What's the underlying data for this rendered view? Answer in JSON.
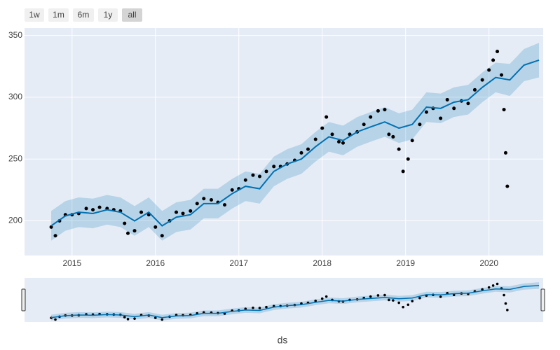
{
  "chart_data": {
    "type": "line",
    "range_buttons": [
      "1w",
      "1m",
      "6m",
      "1y",
      "all"
    ],
    "active_button": 4,
    "x_label": "ds",
    "xlim": [
      2014.43,
      2020.65
    ],
    "xticks": [
      2015,
      2016,
      2017,
      2018,
      2019,
      2020
    ],
    "ylim": [
      172,
      356
    ],
    "yticks": [
      200,
      250,
      300,
      350
    ],
    "grid": true,
    "range_slider": true,
    "series": [
      {
        "mode": "markers",
        "color": "#000000",
        "x": [
          2014.75,
          2014.8,
          2014.85,
          2014.92,
          2015.0,
          2015.08,
          2015.17,
          2015.25,
          2015.33,
          2015.42,
          2015.5,
          2015.58,
          2015.63,
          2015.67,
          2015.75,
          2015.83,
          2015.92,
          2016.0,
          2016.08,
          2016.17,
          2016.25,
          2016.33,
          2016.42,
          2016.5,
          2016.58,
          2016.67,
          2016.75,
          2016.83,
          2016.92,
          2017.0,
          2017.08,
          2017.17,
          2017.25,
          2017.33,
          2017.42,
          2017.5,
          2017.58,
          2017.67,
          2017.75,
          2017.83,
          2017.92,
          2018.0,
          2018.05,
          2018.12,
          2018.2,
          2018.25,
          2018.33,
          2018.42,
          2018.5,
          2018.58,
          2018.67,
          2018.75,
          2018.8,
          2018.85,
          2018.92,
          2018.97,
          2019.03,
          2019.08,
          2019.17,
          2019.25,
          2019.33,
          2019.42,
          2019.5,
          2019.58,
          2019.67,
          2019.75,
          2019.83,
          2019.92,
          2020.0,
          2020.05,
          2020.1,
          2020.15,
          2020.18,
          2020.2,
          2020.22
        ],
        "values": [
          195,
          188,
          200,
          205,
          205,
          206,
          210,
          209,
          211,
          210,
          209,
          208,
          198,
          190,
          192,
          207,
          205,
          195,
          188,
          200,
          207,
          206,
          208,
          214,
          218,
          217,
          215,
          213,
          225,
          226,
          233,
          237,
          236,
          240,
          244,
          244,
          246,
          249,
          255,
          258,
          266,
          275,
          284,
          270,
          264,
          263,
          270,
          272,
          278,
          284,
          289,
          290,
          270,
          268,
          258,
          240,
          250,
          265,
          278,
          288,
          291,
          283,
          298,
          291,
          297,
          295,
          306,
          314,
          322,
          330,
          337,
          318,
          290,
          255,
          228
        ]
      },
      {
        "mode": "line",
        "color": "#0072b2",
        "x": [
          2014.75,
          2014.92,
          2015.08,
          2015.25,
          2015.42,
          2015.58,
          2015.75,
          2015.92,
          2016.08,
          2016.25,
          2016.42,
          2016.58,
          2016.75,
          2016.92,
          2017.08,
          2017.25,
          2017.42,
          2017.58,
          2017.75,
          2017.92,
          2018.08,
          2018.25,
          2018.42,
          2018.58,
          2018.75,
          2018.92,
          2019.08,
          2019.25,
          2019.42,
          2019.58,
          2019.75,
          2019.92,
          2020.08,
          2020.25,
          2020.42,
          2020.6
        ],
        "values": [
          196,
          204,
          207,
          206,
          209,
          207,
          200,
          207,
          196,
          203,
          205,
          214,
          214,
          222,
          228,
          226,
          240,
          246,
          250,
          260,
          268,
          265,
          272,
          276,
          280,
          275,
          278,
          292,
          291,
          296,
          298,
          308,
          316,
          314,
          326,
          330
        ]
      }
    ],
    "band": {
      "color": "#0072b2",
      "x": [
        2014.75,
        2014.92,
        2015.08,
        2015.25,
        2015.42,
        2015.58,
        2015.75,
        2015.92,
        2016.08,
        2016.25,
        2016.42,
        2016.58,
        2016.75,
        2016.92,
        2017.08,
        2017.25,
        2017.42,
        2017.58,
        2017.75,
        2017.92,
        2018.08,
        2018.25,
        2018.42,
        2018.58,
        2018.75,
        2018.92,
        2019.08,
        2019.25,
        2019.42,
        2019.58,
        2019.75,
        2019.92,
        2020.08,
        2020.25,
        2020.42,
        2020.6
      ],
      "upper": [
        208,
        216,
        219,
        218,
        221,
        219,
        212,
        219,
        208,
        215,
        217,
        226,
        226,
        234,
        240,
        238,
        252,
        258,
        262,
        272,
        280,
        277,
        284,
        288,
        292,
        287,
        290,
        304,
        303,
        308,
        310,
        320,
        328,
        327,
        339,
        344
      ],
      "lower": [
        184,
        192,
        195,
        194,
        197,
        195,
        188,
        195,
        184,
        191,
        193,
        202,
        202,
        210,
        216,
        214,
        228,
        234,
        238,
        248,
        256,
        253,
        260,
        264,
        268,
        263,
        266,
        280,
        279,
        284,
        286,
        296,
        304,
        301,
        313,
        316
      ]
    }
  }
}
